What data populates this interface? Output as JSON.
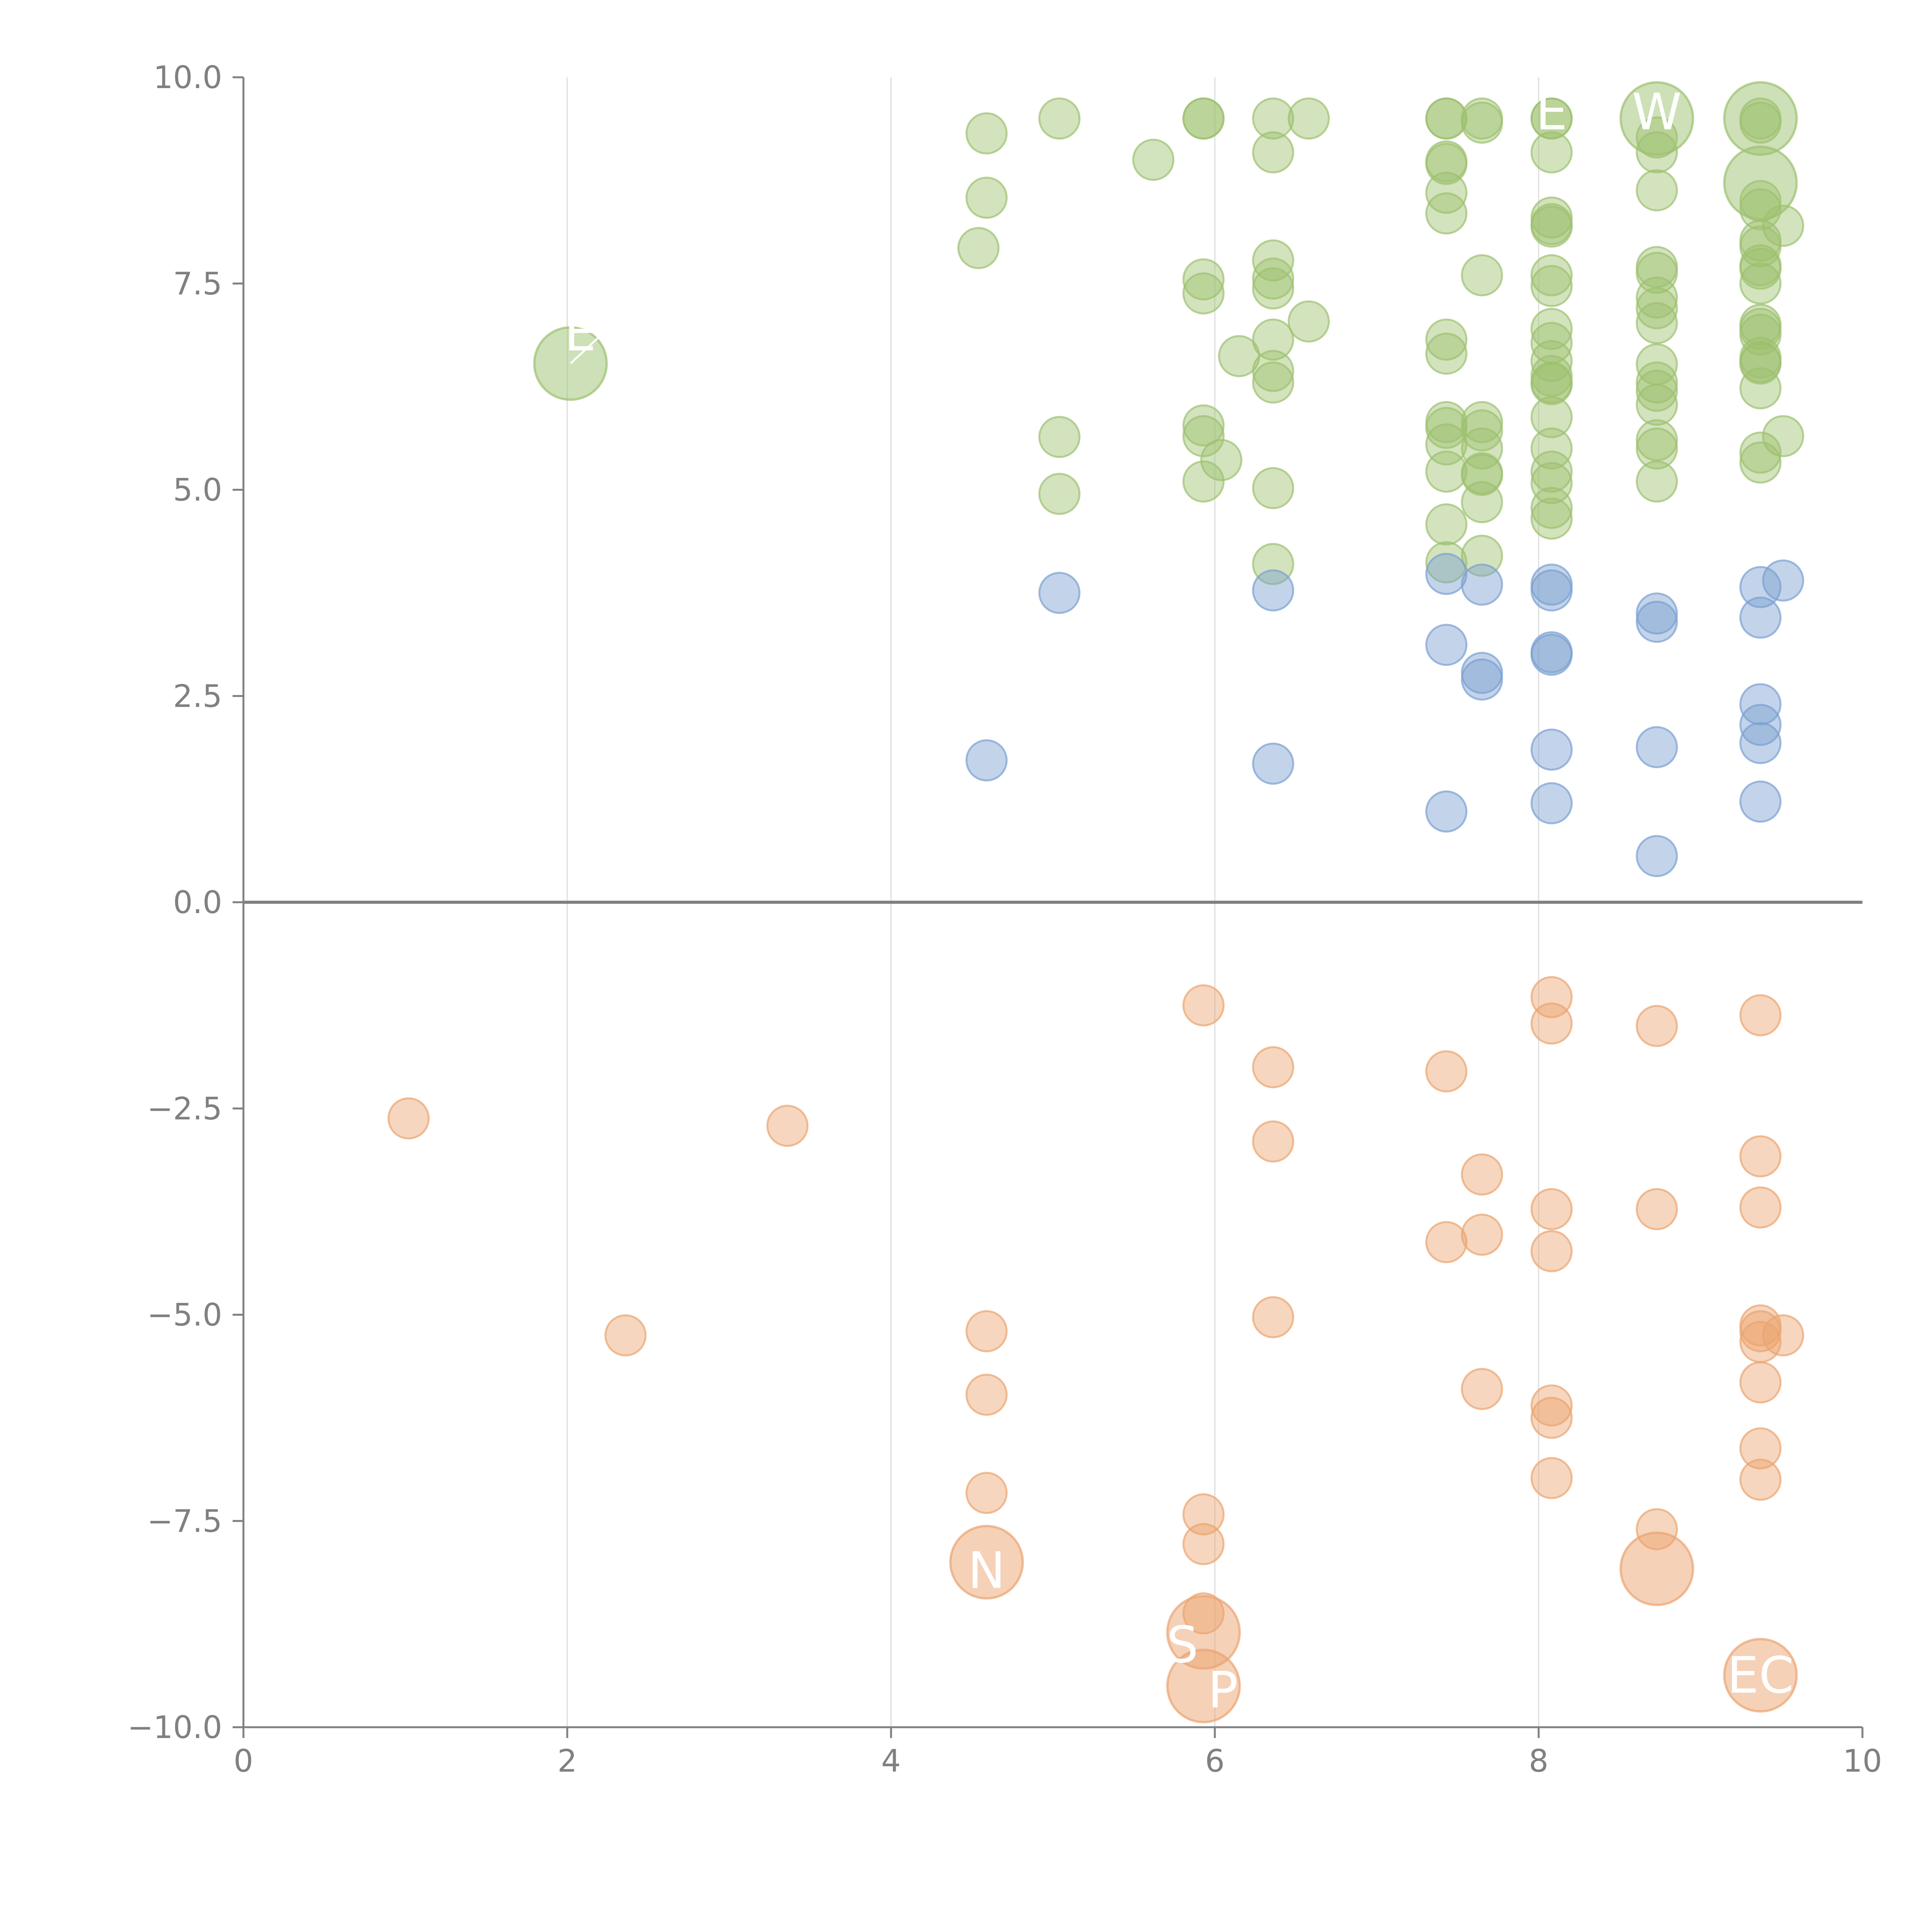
{
  "chart_data": {
    "type": "scatter",
    "title": "",
    "xlabel": "",
    "ylabel": "",
    "xlim": [
      0,
      10
    ],
    "ylim": [
      -10,
      10
    ],
    "x_ticks": [
      "0",
      "2",
      "4",
      "6",
      "8",
      "10"
    ],
    "y_ticks": [
      "10.0",
      "7.5",
      "5.0",
      "2.5",
      "0.0",
      "−2.5",
      "−5.0",
      "−7.5",
      "−10.0"
    ],
    "x_tick_values": [
      0,
      2,
      4,
      6,
      8,
      10
    ],
    "y_tick_values": [
      10,
      7.5,
      5,
      2.5,
      0,
      -2.5,
      -5,
      -7.5,
      -10
    ],
    "grid": "vertical",
    "zero_line": true,
    "colors": {
      "green": "#9dc16f",
      "blue": "#7b9fd1",
      "orange": "#eba46f",
      "axis": "#808080",
      "grid": "#dddddd"
    },
    "series": [
      {
        "color": "green",
        "points": [
          [
            4.59,
            9.32
          ],
          [
            4.59,
            8.54
          ],
          [
            4.54,
            7.93
          ],
          [
            5.04,
            9.5
          ],
          [
            5.62,
            9.0
          ],
          [
            5.93,
            9.5
          ],
          [
            5.93,
            9.5
          ],
          [
            6.36,
            9.5
          ],
          [
            6.58,
            9.5
          ],
          [
            6.36,
            9.09
          ],
          [
            5.93,
            7.55
          ],
          [
            5.93,
            7.38
          ],
          [
            6.36,
            7.78
          ],
          [
            6.36,
            7.56
          ],
          [
            6.36,
            7.44
          ],
          [
            6.58,
            7.04
          ],
          [
            6.15,
            6.62
          ],
          [
            6.36,
            6.82
          ],
          [
            6.36,
            6.44
          ],
          [
            6.36,
            6.3
          ],
          [
            5.04,
            5.64
          ],
          [
            5.93,
            5.78
          ],
          [
            5.93,
            5.65
          ],
          [
            6.04,
            5.36
          ],
          [
            5.93,
            5.1
          ],
          [
            5.04,
            4.95
          ],
          [
            6.36,
            5.02
          ],
          [
            6.36,
            4.1
          ],
          [
            7.43,
            9.5
          ],
          [
            7.43,
            9.5
          ],
          [
            7.65,
            9.5
          ],
          [
            7.65,
            9.45
          ],
          [
            7.43,
            8.98
          ],
          [
            7.43,
            8.95
          ],
          [
            7.43,
            8.6
          ],
          [
            7.43,
            8.35
          ],
          [
            7.65,
            7.6
          ],
          [
            7.43,
            6.82
          ],
          [
            7.43,
            6.65
          ],
          [
            7.43,
            5.82
          ],
          [
            7.43,
            5.75
          ],
          [
            7.43,
            5.55
          ],
          [
            7.43,
            5.22
          ],
          [
            7.43,
            4.58
          ],
          [
            7.43,
            4.12
          ],
          [
            7.65,
            5.82
          ],
          [
            7.65,
            5.72
          ],
          [
            7.65,
            5.5
          ],
          [
            7.65,
            5.2
          ],
          [
            7.65,
            5.18
          ],
          [
            7.65,
            4.85
          ],
          [
            7.65,
            4.2
          ],
          [
            8.08,
            9.5
          ],
          [
            8.08,
            9.5
          ],
          [
            8.08,
            9.09
          ],
          [
            8.08,
            8.3
          ],
          [
            8.08,
            8.22
          ],
          [
            8.08,
            8.19
          ],
          [
            8.08,
            7.6
          ],
          [
            8.08,
            7.47
          ],
          [
            8.08,
            6.95
          ],
          [
            8.08,
            6.78
          ],
          [
            8.08,
            6.56
          ],
          [
            8.08,
            6.38
          ],
          [
            8.08,
            6.3
          ],
          [
            8.08,
            6.28
          ],
          [
            8.08,
            5.88
          ],
          [
            8.08,
            5.5
          ],
          [
            8.08,
            5.22
          ],
          [
            8.08,
            5.08
          ],
          [
            8.08,
            4.78
          ],
          [
            8.08,
            4.65
          ],
          [
            8.73,
            9.27
          ],
          [
            8.73,
            9.09
          ],
          [
            8.73,
            8.63
          ],
          [
            8.73,
            7.7
          ],
          [
            8.73,
            7.63
          ],
          [
            8.73,
            7.33
          ],
          [
            8.73,
            7.2
          ],
          [
            8.73,
            7.02
          ],
          [
            8.73,
            6.52
          ],
          [
            8.73,
            6.3
          ],
          [
            8.73,
            6.2
          ],
          [
            8.73,
            6.03
          ],
          [
            8.73,
            5.6
          ],
          [
            8.73,
            5.5
          ],
          [
            8.73,
            5.1
          ],
          [
            9.37,
            9.5
          ],
          [
            9.37,
            9.45
          ],
          [
            9.37,
            8.5
          ],
          [
            9.37,
            8.4
          ],
          [
            9.37,
            8.02
          ],
          [
            9.37,
            7.95
          ],
          [
            9.37,
            7.72
          ],
          [
            9.37,
            7.68
          ],
          [
            9.37,
            7.5
          ],
          [
            9.37,
            7.0
          ],
          [
            9.37,
            6.95
          ],
          [
            9.37,
            6.88
          ],
          [
            9.37,
            6.6
          ],
          [
            9.37,
            6.55
          ],
          [
            9.37,
            6.53
          ],
          [
            9.37,
            6.23
          ],
          [
            9.37,
            5.45
          ],
          [
            9.37,
            5.33
          ],
          [
            9.51,
            8.2
          ],
          [
            9.51,
            5.65
          ]
        ]
      },
      {
        "color": "blue",
        "points": [
          [
            4.59,
            1.72
          ],
          [
            5.04,
            3.75
          ],
          [
            6.36,
            3.78
          ],
          [
            6.36,
            1.68
          ],
          [
            7.43,
            3.98
          ],
          [
            7.43,
            3.12
          ],
          [
            7.43,
            1.1
          ],
          [
            7.65,
            3.85
          ],
          [
            7.65,
            2.78
          ],
          [
            7.65,
            2.7
          ],
          [
            8.08,
            3.85
          ],
          [
            8.08,
            3.78
          ],
          [
            8.08,
            3.03
          ],
          [
            8.08,
            3.0
          ],
          [
            8.08,
            1.85
          ],
          [
            8.08,
            1.2
          ],
          [
            8.73,
            3.5
          ],
          [
            8.73,
            3.4
          ],
          [
            8.73,
            1.88
          ],
          [
            8.73,
            0.56
          ],
          [
            9.37,
            3.82
          ],
          [
            9.37,
            3.45
          ],
          [
            9.37,
            2.4
          ],
          [
            9.37,
            2.15
          ],
          [
            9.37,
            1.93
          ],
          [
            9.37,
            1.22
          ],
          [
            9.51,
            3.9
          ]
        ]
      },
      {
        "color": "orange",
        "points": [
          [
            1.02,
            -2.62
          ],
          [
            2.36,
            -5.25
          ],
          [
            3.36,
            -2.71
          ],
          [
            4.59,
            -5.2
          ],
          [
            4.59,
            -5.97
          ],
          [
            4.59,
            -7.16
          ],
          [
            5.93,
            -1.25
          ],
          [
            5.93,
            -7.42
          ],
          [
            5.93,
            -7.78
          ],
          [
            5.93,
            -8.62
          ],
          [
            6.36,
            -2.0
          ],
          [
            6.36,
            -2.9
          ],
          [
            6.36,
            -5.03
          ],
          [
            7.43,
            -2.05
          ],
          [
            7.43,
            -4.12
          ],
          [
            7.65,
            -3.3
          ],
          [
            7.65,
            -4.03
          ],
          [
            7.65,
            -5.9
          ],
          [
            8.08,
            -1.15
          ],
          [
            8.08,
            -1.47
          ],
          [
            8.08,
            -3.72
          ],
          [
            8.08,
            -4.23
          ],
          [
            8.08,
            -6.1
          ],
          [
            8.08,
            -6.25
          ],
          [
            8.08,
            -6.98
          ],
          [
            8.73,
            -1.5
          ],
          [
            8.73,
            -3.72
          ],
          [
            8.73,
            -7.6
          ],
          [
            9.37,
            -1.37
          ],
          [
            9.37,
            -3.08
          ],
          [
            9.37,
            -3.7
          ],
          [
            9.37,
            -5.13
          ],
          [
            9.37,
            -5.2
          ],
          [
            9.37,
            -5.33
          ],
          [
            9.37,
            -5.82
          ],
          [
            9.37,
            -6.62
          ],
          [
            9.37,
            -7.0
          ],
          [
            9.51,
            -5.25
          ]
        ]
      }
    ],
    "highlighted_points": [
      {
        "color": "green",
        "x": 2.02,
        "y": 6.53,
        "size": 2
      },
      {
        "color": "green",
        "x": 8.73,
        "y": 9.5,
        "size": 2
      },
      {
        "color": "green",
        "x": 9.37,
        "y": 9.5,
        "size": 2
      },
      {
        "color": "green",
        "x": 9.37,
        "y": 8.72,
        "size": 2
      },
      {
        "color": "orange",
        "x": 4.59,
        "y": -8.0,
        "size": 2
      },
      {
        "color": "orange",
        "x": 5.93,
        "y": -8.85,
        "size": 2
      },
      {
        "color": "orange",
        "x": 5.93,
        "y": -9.5,
        "size": 2
      },
      {
        "color": "orange",
        "x": 8.73,
        "y": -8.08,
        "size": 2
      },
      {
        "color": "orange",
        "x": 9.37,
        "y": -9.37,
        "size": 2
      }
    ],
    "labels": [
      {
        "text": "E",
        "x": 2.08,
        "y": 6.9,
        "lx1": 2.02,
        "ly1": 6.53,
        "lx2": 2.25,
        "ly2": 6.95
      },
      {
        "text": "E",
        "x": 8.08,
        "y": 9.58
      },
      {
        "text": "W",
        "x": 8.73,
        "y": 9.58
      },
      {
        "text": "N",
        "x": 4.59,
        "y": -8.1
      },
      {
        "text": "S",
        "x": 5.8,
        "y": -9.0
      },
      {
        "text": "P",
        "x": 6.05,
        "y": -9.55
      },
      {
        "text": "EC",
        "x": 9.37,
        "y": -9.37
      }
    ]
  }
}
